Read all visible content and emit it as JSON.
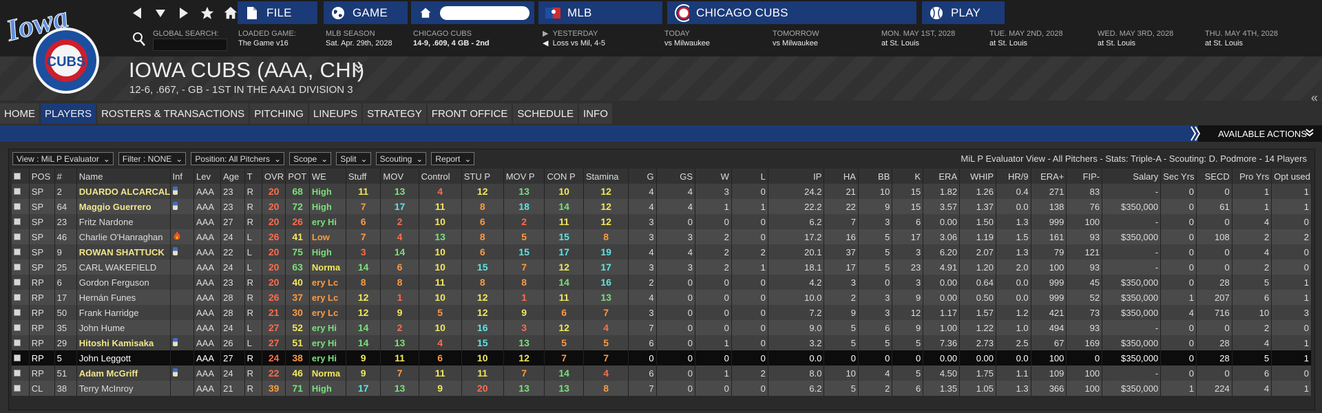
{
  "topbar": {
    "menus": [
      {
        "label": "FILE",
        "icon": "file-icon"
      },
      {
        "label": "GAME",
        "icon": "globe-icon"
      },
      {
        "label": "",
        "icon": "home-icon"
      },
      {
        "label": "MLB",
        "icon": "mlb-logo-icon"
      },
      {
        "label": "CHICAGO  CUBS",
        "icon": "cubs-logo-icon"
      },
      {
        "label": "PLAY",
        "icon": "baseball-icon"
      }
    ],
    "global_search_label": "GLOBAL SEARCH:",
    "loaded_game": {
      "k": "LOADED GAME:",
      "v": "The Game v16"
    },
    "season": {
      "k": "MLB SEASON",
      "v": "Sat. Apr. 29th, 2028"
    },
    "team_record": {
      "k": "CHICAGO  CUBS",
      "v": "14-9, .609, 4 GB - 2nd"
    },
    "yesterday": {
      "k": "YESTERDAY",
      "v": "Loss vs Mil, 4-5"
    },
    "today": {
      "k": "TODAY",
      "v": "vs Milwaukee"
    },
    "tomorrow": {
      "k": "TOMORROW",
      "v": "vs Milwaukee"
    },
    "schedule": [
      {
        "k": "MON. MAY 1ST, 2028",
        "v": "at St. Louis"
      },
      {
        "k": "TUE. MAY 2ND, 2028",
        "v": "at St. Louis"
      },
      {
        "k": "WED. MAY 3RD, 2028",
        "v": "at St. Louis"
      },
      {
        "k": "THU. MAY 4TH, 2028",
        "v": "at St. Louis"
      }
    ]
  },
  "logo": {
    "script": "Iowa",
    "badge": "CUBS"
  },
  "team": {
    "title": "IOWA CUBS (AAA, CHI)",
    "subtitle": "12-6, .667, - GB - 1ST IN THE AAA1 DIVISION 3"
  },
  "tabs": [
    "HOME",
    "PLAYERS",
    "ROSTERS & TRANSACTIONS",
    "PITCHING",
    "LINEUPS",
    "STRATEGY",
    "FRONT OFFICE",
    "SCHEDULE",
    "INFO"
  ],
  "active_tab": "PLAYERS",
  "actions_label": "AVAILABLE ACTIONS",
  "filters": [
    "View : MiL P Evaluator",
    "Filter : NONE",
    "Position: All Pitchers",
    "Scope",
    "Split",
    "Scouting",
    "Report"
  ],
  "view_summary": "MiL P Evaluator View - All Pitchers - Stats: Triple-A - Scouting: D. Podmore - 14 Players",
  "colors": {
    "accent": "#1b3a78",
    "rating_red": "#ff6b4a",
    "rating_orange": "#ff9a40",
    "rating_yellow": "#f2e85b",
    "rating_green": "#79e07a",
    "rating_cyan": "#5fe3e3",
    "name_highlight": "#f0e68c"
  },
  "columns": [
    "POS",
    "#",
    "Name",
    "Inf",
    "Lev",
    "Age",
    "T",
    "OVR",
    "POT",
    "WE",
    "Stuff",
    "MOV",
    "Control",
    "STU P",
    "MOV P",
    "CON P",
    "Stamina",
    "G",
    "GS",
    "W",
    "L",
    "IP",
    "HA",
    "BB",
    "K",
    "ERA",
    "WHIP",
    "HR/9",
    "ERA+",
    "FIP-",
    "Salary",
    "Sec Yrs",
    "SECD",
    "Pro Yrs",
    "Opt used"
  ],
  "rows": [
    {
      "pos": "SP",
      "num": "2",
      "name": "DUARDO ALCARCAL",
      "hl": true,
      "inf": "inj",
      "lev": "AAA",
      "age": "23",
      "t": "R",
      "ovr": "20",
      "pot": "68",
      "we": "High",
      "stuff": "11",
      "mov": "13",
      "control": "4",
      "stup": "12",
      "movp": "13",
      "conp": "10",
      "stamina": "12",
      "g": "4",
      "gs": "4",
      "w": "3",
      "l": "0",
      "ip": "24.2",
      "ha": "21",
      "bb": "10",
      "k": "15",
      "era": "1.82",
      "whip": "1.26",
      "hr9": "0.4",
      "eraplus": "271",
      "fip": "83",
      "salary": "-",
      "secyrs": "0",
      "secd": "0",
      "proyrs": "1",
      "opt": "1"
    },
    {
      "pos": "SP",
      "num": "64",
      "name": "Maggio Guerrero",
      "hl": true,
      "inf": "inj",
      "lev": "AAA",
      "age": "23",
      "t": "R",
      "ovr": "20",
      "pot": "72",
      "we": "High",
      "stuff": "7",
      "mov": "17",
      "control": "11",
      "stup": "8",
      "movp": "18",
      "conp": "14",
      "stamina": "12",
      "g": "4",
      "gs": "4",
      "w": "1",
      "l": "1",
      "ip": "22.2",
      "ha": "22",
      "bb": "9",
      "k": "15",
      "era": "3.57",
      "whip": "1.37",
      "hr9": "0.0",
      "eraplus": "138",
      "fip": "76",
      "salary": "$350,000",
      "secyrs": "0",
      "secd": "61",
      "proyrs": "1",
      "opt": "1"
    },
    {
      "pos": "SP",
      "num": "23",
      "name": "Fritz Nardone",
      "hl": false,
      "inf": "",
      "lev": "AAA",
      "age": "27",
      "t": "R",
      "ovr": "20",
      "pot": "26",
      "we": "ery Hi",
      "stuff": "6",
      "mov": "2",
      "control": "10",
      "stup": "6",
      "movp": "2",
      "conp": "11",
      "stamina": "12",
      "g": "3",
      "gs": "0",
      "w": "0",
      "l": "0",
      "ip": "6.2",
      "ha": "7",
      "bb": "3",
      "k": "6",
      "era": "0.00",
      "whip": "1.50",
      "hr9": "1.3",
      "eraplus": "999",
      "fip": "100",
      "salary": "-",
      "secyrs": "0",
      "secd": "0",
      "proyrs": "4",
      "opt": "0"
    },
    {
      "pos": "SP",
      "num": "46",
      "name": "Charlie O'Hanraghan",
      "hl": false,
      "inf": "fire",
      "lev": "AAA",
      "age": "24",
      "t": "L",
      "ovr": "26",
      "pot": "41",
      "we": "Low",
      "stuff": "7",
      "mov": "4",
      "control": "13",
      "stup": "8",
      "movp": "5",
      "conp": "15",
      "stamina": "8",
      "g": "3",
      "gs": "3",
      "w": "2",
      "l": "0",
      "ip": "17.2",
      "ha": "16",
      "bb": "5",
      "k": "17",
      "era": "3.06",
      "whip": "1.19",
      "hr9": "1.5",
      "eraplus": "161",
      "fip": "93",
      "salary": "$350,000",
      "secyrs": "0",
      "secd": "108",
      "proyrs": "2",
      "opt": "2"
    },
    {
      "pos": "SP",
      "num": "9",
      "name": "ROWAN SHATTUCK",
      "hl": true,
      "inf": "inj",
      "lev": "AAA",
      "age": "22",
      "t": "L",
      "ovr": "20",
      "pot": "75",
      "we": "High",
      "stuff": "3",
      "mov": "14",
      "control": "10",
      "stup": "6",
      "movp": "15",
      "conp": "17",
      "stamina": "19",
      "g": "4",
      "gs": "4",
      "w": "2",
      "l": "2",
      "ip": "20.1",
      "ha": "37",
      "bb": "5",
      "k": "3",
      "era": "6.20",
      "whip": "2.07",
      "hr9": "1.3",
      "eraplus": "79",
      "fip": "121",
      "salary": "-",
      "secyrs": "0",
      "secd": "0",
      "proyrs": "4",
      "opt": "0"
    },
    {
      "pos": "SP",
      "num": "25",
      "name": "CARL WAKEFIELD",
      "hl": false,
      "inf": "",
      "lev": "AAA",
      "age": "24",
      "t": "L",
      "ovr": "20",
      "pot": "63",
      "we": "Norma",
      "stuff": "14",
      "mov": "6",
      "control": "10",
      "stup": "15",
      "movp": "7",
      "conp": "12",
      "stamina": "17",
      "g": "3",
      "gs": "3",
      "w": "2",
      "l": "1",
      "ip": "18.1",
      "ha": "17",
      "bb": "5",
      "k": "23",
      "era": "4.91",
      "whip": "1.20",
      "hr9": "2.0",
      "eraplus": "100",
      "fip": "93",
      "salary": "-",
      "secyrs": "0",
      "secd": "0",
      "proyrs": "2",
      "opt": "0"
    },
    {
      "pos": "RP",
      "num": "6",
      "name": "Gordon Ferguson",
      "hl": false,
      "inf": "",
      "lev": "AAA",
      "age": "23",
      "t": "R",
      "ovr": "20",
      "pot": "40",
      "we": "ery Lc",
      "stuff": "8",
      "mov": "8",
      "control": "11",
      "stup": "8",
      "movp": "8",
      "conp": "14",
      "stamina": "16",
      "g": "2",
      "gs": "0",
      "w": "0",
      "l": "0",
      "ip": "4.2",
      "ha": "3",
      "bb": "0",
      "k": "3",
      "era": "0.00",
      "whip": "0.64",
      "hr9": "0.0",
      "eraplus": "999",
      "fip": "45",
      "salary": "$350,000",
      "secyrs": "0",
      "secd": "28",
      "proyrs": "5",
      "opt": "1"
    },
    {
      "pos": "RP",
      "num": "17",
      "name": "Hernán Funes",
      "hl": false,
      "inf": "",
      "lev": "AAA",
      "age": "28",
      "t": "R",
      "ovr": "26",
      "pot": "37",
      "we": "ery Lc",
      "stuff": "12",
      "mov": "1",
      "control": "10",
      "stup": "12",
      "movp": "1",
      "conp": "11",
      "stamina": "13",
      "g": "4",
      "gs": "0",
      "w": "0",
      "l": "0",
      "ip": "10.0",
      "ha": "2",
      "bb": "3",
      "k": "9",
      "era": "0.00",
      "whip": "0.50",
      "hr9": "0.0",
      "eraplus": "999",
      "fip": "52",
      "salary": "$350,000",
      "secyrs": "1",
      "secd": "207",
      "proyrs": "6",
      "opt": "1"
    },
    {
      "pos": "RP",
      "num": "50",
      "name": "Frank Harridge",
      "hl": false,
      "inf": "",
      "lev": "AAA",
      "age": "28",
      "t": "R",
      "ovr": "21",
      "pot": "30",
      "we": "ery Lc",
      "stuff": "12",
      "mov": "9",
      "control": "5",
      "stup": "12",
      "movp": "9",
      "conp": "6",
      "stamina": "7",
      "g": "3",
      "gs": "0",
      "w": "0",
      "l": "0",
      "ip": "7.2",
      "ha": "9",
      "bb": "3",
      "k": "12",
      "era": "1.17",
      "whip": "1.57",
      "hr9": "1.2",
      "eraplus": "421",
      "fip": "73",
      "salary": "$350,000",
      "secyrs": "4",
      "secd": "716",
      "proyrs": "10",
      "opt": "3"
    },
    {
      "pos": "RP",
      "num": "35",
      "name": "John Hume",
      "hl": false,
      "inf": "",
      "lev": "AAA",
      "age": "24",
      "t": "L",
      "ovr": "27",
      "pot": "52",
      "we": "ery Hi",
      "stuff": "14",
      "mov": "2",
      "control": "10",
      "stup": "16",
      "movp": "3",
      "conp": "12",
      "stamina": "4",
      "g": "7",
      "gs": "0",
      "w": "0",
      "l": "0",
      "ip": "9.0",
      "ha": "5",
      "bb": "6",
      "k": "9",
      "era": "1.00",
      "whip": "1.22",
      "hr9": "1.0",
      "eraplus": "494",
      "fip": "93",
      "salary": "-",
      "secyrs": "0",
      "secd": "0",
      "proyrs": "2",
      "opt": "0"
    },
    {
      "pos": "RP",
      "num": "29",
      "name": "Hitoshi Kamisaka",
      "hl": true,
      "inf": "inj",
      "lev": "AAA",
      "age": "26",
      "t": "L",
      "ovr": "27",
      "pot": "51",
      "we": "ery Hi",
      "stuff": "14",
      "mov": "13",
      "control": "4",
      "stup": "15",
      "movp": "13",
      "conp": "5",
      "stamina": "5",
      "g": "6",
      "gs": "0",
      "w": "1",
      "l": "0",
      "ip": "3.2",
      "ha": "5",
      "bb": "5",
      "k": "5",
      "era": "7.36",
      "whip": "2.73",
      "hr9": "2.5",
      "eraplus": "67",
      "fip": "169",
      "salary": "$350,000",
      "secyrs": "0",
      "secd": "28",
      "proyrs": "4",
      "opt": "1"
    },
    {
      "pos": "RP",
      "num": "5",
      "name": "John Leggott",
      "hl": false,
      "sel": true,
      "inf": "",
      "lev": "AAA",
      "age": "27",
      "t": "R",
      "ovr": "24",
      "pot": "38",
      "we": "ery Hi",
      "stuff": "9",
      "mov": "11",
      "control": "6",
      "stup": "10",
      "movp": "12",
      "conp": "7",
      "stamina": "7",
      "g": "0",
      "gs": "0",
      "w": "0",
      "l": "0",
      "ip": "0.0",
      "ha": "0",
      "bb": "0",
      "k": "0",
      "era": "0.00",
      "whip": "0.00",
      "hr9": "0.0",
      "eraplus": "100",
      "fip": "0",
      "salary": "$350,000",
      "secyrs": "0",
      "secd": "28",
      "proyrs": "5",
      "opt": "1"
    },
    {
      "pos": "RP",
      "num": "51",
      "name": "Adam McGriff",
      "hl": true,
      "inf": "inj",
      "lev": "AAA",
      "age": "24",
      "t": "R",
      "ovr": "22",
      "pot": "46",
      "we": "Norma",
      "stuff": "9",
      "mov": "7",
      "control": "11",
      "stup": "11",
      "movp": "7",
      "conp": "14",
      "stamina": "4",
      "g": "6",
      "gs": "0",
      "w": "1",
      "l": "2",
      "ip": "8.0",
      "ha": "10",
      "bb": "4",
      "k": "5",
      "era": "4.50",
      "whip": "1.75",
      "hr9": "1.1",
      "eraplus": "109",
      "fip": "100",
      "salary": "-",
      "secyrs": "0",
      "secd": "0",
      "proyrs": "6",
      "opt": "0"
    },
    {
      "pos": "CL",
      "num": "38",
      "name": "Terry McInroy",
      "hl": false,
      "inf": "",
      "lev": "AAA",
      "age": "21",
      "t": "R",
      "ovr": "39",
      "pot": "71",
      "we": "High",
      "stuff": "17",
      "mov": "13",
      "control": "9",
      "stup": "20",
      "movp": "13",
      "conp": "13",
      "stamina": "8",
      "g": "7",
      "gs": "0",
      "w": "0",
      "l": "0",
      "ip": "6.2",
      "ha": "5",
      "bb": "2",
      "k": "6",
      "era": "1.35",
      "whip": "1.05",
      "hr9": "1.3",
      "eraplus": "366",
      "fip": "100",
      "salary": "$350,000",
      "secyrs": "1",
      "secd": "224",
      "proyrs": "4",
      "opt": "1"
    }
  ]
}
